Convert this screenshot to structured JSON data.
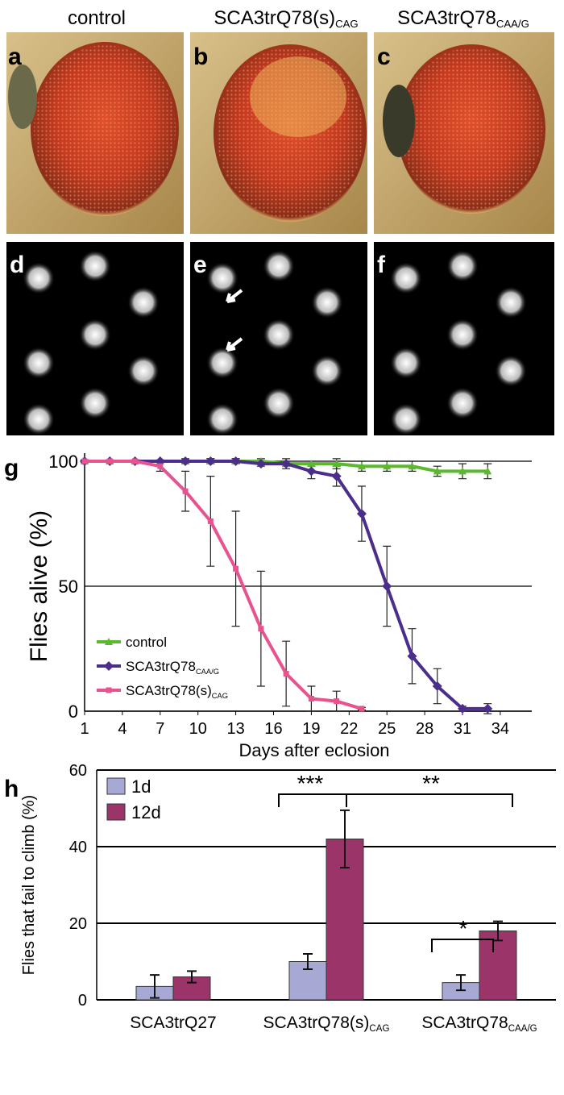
{
  "figure": {
    "headers": [
      {
        "text": "control"
      },
      {
        "text": "SCA3trQ78(s)",
        "sub": "CAG"
      },
      {
        "text": "SCA3trQ78",
        "sub": "CAA/G"
      }
    ],
    "panel_labels": [
      "a",
      "b",
      "c",
      "d",
      "e",
      "f"
    ]
  },
  "chart_data": [
    {
      "type": "line",
      "panel_label": "g",
      "x_label": "Days after eclosion",
      "y_label": "Flies alive (%)",
      "xlim": [
        1,
        36.5
      ],
      "xticks": [
        1,
        4,
        7,
        10,
        13,
        16,
        19,
        22,
        25,
        28,
        31,
        34
      ],
      "ylim": [
        0,
        100
      ],
      "yticks": [
        0,
        50,
        100
      ],
      "grid": true,
      "series": [
        {
          "name": "control",
          "color": "#5cb82e",
          "marker": "triangle",
          "x": [
            1,
            3,
            5,
            7,
            9,
            11,
            13,
            15,
            17,
            19,
            21,
            23,
            25,
            27,
            29,
            31,
            33
          ],
          "values": [
            100,
            100,
            100,
            100,
            100,
            100,
            100,
            100,
            99,
            99,
            99,
            98,
            98,
            98,
            96,
            96,
            96
          ],
          "errors": [
            0.5,
            0.5,
            0.5,
            0.5,
            1,
            1,
            1,
            1,
            1,
            1,
            2,
            2,
            2,
            2,
            2,
            3,
            3
          ]
        },
        {
          "name": "SCA3trQ78",
          "name_sub": "CAA/G",
          "color": "#4b2e8c",
          "marker": "diamond",
          "x": [
            1,
            3,
            5,
            7,
            9,
            11,
            13,
            15,
            17,
            19,
            21,
            23,
            25,
            27,
            29,
            31,
            33
          ],
          "values": [
            100,
            100,
            100,
            100,
            100,
            100,
            100,
            99,
            99,
            96,
            94,
            79,
            50,
            22,
            10,
            1,
            1
          ],
          "errors": [
            0.5,
            0.5,
            0.5,
            0.5,
            0.5,
            1,
            1,
            1,
            2,
            3,
            4,
            11,
            16,
            11,
            7,
            1,
            2
          ]
        },
        {
          "name": "SCA3trQ78(s)",
          "name_sub": "CAG",
          "color": "#e8528f",
          "marker": "square",
          "x": [
            1,
            3,
            5,
            7,
            9,
            11,
            13,
            15,
            17,
            19,
            21,
            23
          ],
          "values": [
            100,
            100,
            100,
            98,
            88,
            76,
            57,
            33,
            15,
            5,
            4,
            1
          ],
          "errors": [
            0.5,
            0.5,
            0.5,
            2,
            8,
            18,
            23,
            23,
            13,
            5,
            4,
            0.5
          ]
        }
      ]
    },
    {
      "type": "bar",
      "panel_label": "h",
      "y_label": "Flies that fail to climb (%)",
      "categories": [
        "SCA3trQ27",
        "SCA3trQ78(s)",
        "SCA3trQ78"
      ],
      "category_subs": [
        null,
        "CAG",
        "CAA/G"
      ],
      "ylim": [
        0,
        60
      ],
      "yticks": [
        0,
        20,
        40,
        60
      ],
      "grid": true,
      "legend": "top-left",
      "series": [
        {
          "name": "1d",
          "color": "#a8a8d4",
          "values": [
            3.5,
            10,
            4.5
          ],
          "errors": [
            3,
            2,
            2
          ]
        },
        {
          "name": "12d",
          "color": "#9b3468",
          "values": [
            6,
            42,
            18
          ],
          "errors": [
            1.5,
            7.5,
            2.5
          ]
        }
      ],
      "annotations": [
        "***",
        "**",
        "*"
      ]
    }
  ]
}
